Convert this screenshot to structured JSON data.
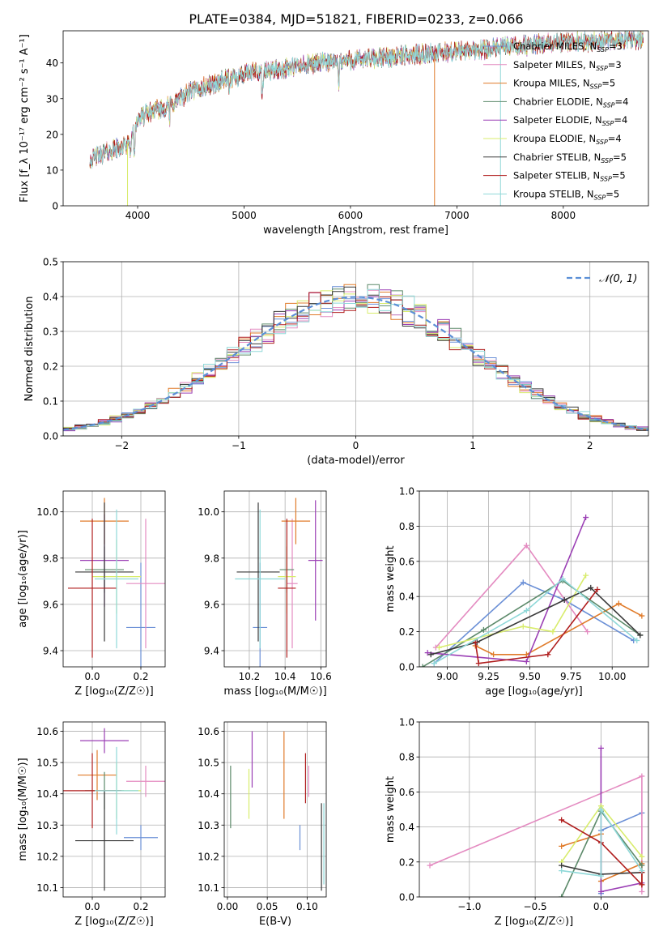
{
  "title": "PLATE=0384, MJD=51821, FIBERID=0233, z=0.066",
  "colors": [
    "#6a8fd6",
    "#e48bc1",
    "#e07b2a",
    "#5c8a6a",
    "#9b3fb5",
    "#d8ec6c",
    "#3a3a3a",
    "#b01e1e",
    "#8fd8d8"
  ],
  "chart_data": [
    {
      "id": "spectrum",
      "type": "line",
      "xlabel": "wavelength [Angstrom, rest frame]",
      "ylabel": "Flux [f_λ 10⁻¹⁷ erg cm⁻² s⁻¹ A⁻¹]",
      "xlim": [
        3300,
        8800
      ],
      "ylim": [
        0,
        49
      ],
      "xticks": [
        "4000",
        "5000",
        "6000",
        "7000",
        "8000"
      ],
      "yticks": [
        "0",
        "10",
        "20",
        "30",
        "40"
      ],
      "grid": false,
      "legend_position": "right",
      "continuum_x": [
        3550,
        3700,
        3900,
        4000,
        4100,
        4300,
        4500,
        4700,
        4900,
        5100,
        5300,
        5500,
        5700,
        5900,
        6100,
        6300,
        6500,
        6700,
        6900,
        7100,
        7300,
        7500,
        7700,
        7900,
        8100,
        8300,
        8500,
        8700
      ],
      "continuum_y": [
        13,
        15,
        17,
        24,
        26,
        28,
        32,
        34,
        36,
        37.5,
        38,
        39,
        40,
        40.5,
        41,
        41.5,
        42,
        42.5,
        43,
        43.5,
        44,
        44.5,
        45,
        45.5,
        46,
        46,
        46.5,
        46.5
      ],
      "series": [
        {
          "name": "Chabrier MILES, N_SSP=3"
        },
        {
          "name": "Salpeter MILES, N_SSP=3"
        },
        {
          "name": "Kroupa MILES, N_SSP=5"
        },
        {
          "name": "Chabrier ELODIE, N_SSP=4"
        },
        {
          "name": "Salpeter ELODIE, N_SSP=4"
        },
        {
          "name": "Kroupa ELODIE, N_SSP=4"
        },
        {
          "name": "Chabrier STELIB, N_SSP=5"
        },
        {
          "name": "Salpeter STELIB, N_SSP=5"
        },
        {
          "name": "Kroupa STELIB, N_SSP=5"
        }
      ],
      "legend_entries": [
        {
          "pre": "Chabrier MILES, N",
          "sub": "SSP",
          "post": "=3"
        },
        {
          "pre": "Salpeter MILES, N",
          "sub": "SSP",
          "post": "=3"
        },
        {
          "pre": "Kroupa MILES, N",
          "sub": "SSP",
          "post": "=5"
        },
        {
          "pre": "Chabrier ELODIE, N",
          "sub": "SSP",
          "post": "=4"
        },
        {
          "pre": "Salpeter ELODIE, N",
          "sub": "SSP",
          "post": "=4"
        },
        {
          "pre": "Kroupa ELODIE, N",
          "sub": "SSP",
          "post": "=4"
        },
        {
          "pre": "Chabrier STELIB, N",
          "sub": "SSP",
          "post": "=5"
        },
        {
          "pre": "Salpeter STELIB, N",
          "sub": "SSP",
          "post": "=5"
        },
        {
          "pre": "Kroupa STELIB, N",
          "sub": "SSP",
          "post": "=5"
        }
      ]
    },
    {
      "id": "residuals",
      "type": "histogram",
      "xlabel": "(data-model)/error",
      "ylabel": "Normed distribution",
      "xlim": [
        -2.5,
        2.5
      ],
      "ylim": [
        0,
        0.5
      ],
      "xticks": [
        "−2",
        "−1",
        "0",
        "1",
        "2"
      ],
      "yticks": [
        "0.0",
        "0.1",
        "0.2",
        "0.3",
        "0.4",
        "0.5"
      ],
      "grid": true,
      "bin_width": 0.1,
      "legend_label": "𝒩(0, 1)",
      "legend_position": "top-right",
      "reference_curve": "normal(0,1)"
    },
    {
      "id": "age_vs_Z",
      "type": "errorbar",
      "xlabel": "Z [log₁₀(Z/Z☉)]",
      "ylabel": "age  [log₁₀(age/yr)]",
      "xlim": [
        -0.12,
        0.3
      ],
      "ylim": [
        9.33,
        10.09
      ],
      "xticks": [
        "0.0",
        "0.2"
      ],
      "yticks": [
        "9.4",
        "9.6",
        "9.8",
        "10.0"
      ],
      "grid": true,
      "points": [
        {
          "x": 0.2,
          "xerr": 0.06,
          "y": 9.5,
          "yerr": 0.28
        },
        {
          "x": 0.22,
          "xerr": 0.08,
          "y": 9.69,
          "yerr": 0.28
        },
        {
          "x": 0.05,
          "xerr": 0.1,
          "y": 9.96,
          "yerr": 0.1
        },
        {
          "x": 0.05,
          "xerr": 0.08,
          "y": 9.75,
          "yerr": 0.1
        },
        {
          "x": 0.05,
          "xerr": 0.1,
          "y": 9.79,
          "yerr": 0.2
        },
        {
          "x": 0.1,
          "xerr": 0.1,
          "y": 9.72,
          "yerr": 0.16
        },
        {
          "x": 0.05,
          "xerr": 0.12,
          "y": 9.74,
          "yerr": 0.3
        },
        {
          "x": 0.0,
          "xerr": 0.1,
          "y": 9.67,
          "yerr": 0.3
        },
        {
          "x": 0.1,
          "xerr": 0.09,
          "y": 9.71,
          "yerr": 0.3
        }
      ]
    },
    {
      "id": "age_vs_mass",
      "type": "errorbar",
      "xlabel": "mass [log₁₀(M/M☉)]",
      "ylabel": "",
      "xlim": [
        10.06,
        10.63
      ],
      "ylim": [
        9.33,
        10.09
      ],
      "xticks": [
        "10.2",
        "10.4",
        "10.6"
      ],
      "yticks": [
        "9.4",
        "9.6",
        "9.8",
        "10.0"
      ],
      "grid": true,
      "points": [
        {
          "x": 10.26,
          "xerr": 0.04,
          "y": 9.5,
          "yerr": 0.28
        },
        {
          "x": 10.44,
          "xerr": 0.03,
          "y": 9.69,
          "yerr": 0.28
        },
        {
          "x": 10.46,
          "xerr": 0.08,
          "y": 9.96,
          "yerr": 0.1
        },
        {
          "x": 10.41,
          "xerr": 0.04,
          "y": 9.75,
          "yerr": 0.1
        },
        {
          "x": 10.57,
          "xerr": 0.04,
          "y": 9.79,
          "yerr": 0.26
        },
        {
          "x": 10.41,
          "xerr": 0.05,
          "y": 9.72,
          "yerr": 0.16
        },
        {
          "x": 10.25,
          "xerr": 0.12,
          "y": 9.74,
          "yerr": 0.3
        },
        {
          "x": 10.41,
          "xerr": 0.05,
          "y": 9.67,
          "yerr": 0.3
        },
        {
          "x": 10.26,
          "xerr": 0.14,
          "y": 9.71,
          "yerr": 0.3
        }
      ]
    },
    {
      "id": "weight_vs_age",
      "type": "line",
      "xlabel": "age  [log₁₀(age/yr)]",
      "ylabel": "mass weight",
      "xlim": [
        8.83,
        10.22
      ],
      "ylim": [
        0,
        1.0
      ],
      "xticks": [
        "9.00",
        "9.25",
        "9.50",
        "9.75",
        "10.00"
      ],
      "yticks": [
        "0.0",
        "0.2",
        "0.4",
        "0.6",
        "0.8",
        "1.0"
      ],
      "grid": true,
      "series": [
        {
          "x": [
            8.92,
            9.46,
            9.71,
            10.13
          ],
          "y": [
            0.02,
            0.48,
            0.38,
            0.15
          ]
        },
        {
          "x": [
            8.93,
            9.48,
            9.85
          ],
          "y": [
            0.11,
            0.69,
            0.2
          ]
        },
        {
          "x": [
            9.17,
            9.28,
            9.48,
            10.04,
            10.18
          ],
          "y": [
            0.12,
            0.07,
            0.07,
            0.36,
            0.29
          ]
        },
        {
          "x": [
            8.85,
            9.22,
            9.7,
            10.17
          ],
          "y": [
            0.0,
            0.21,
            0.49,
            0.18
          ]
        },
        {
          "x": [
            8.88,
            9.48,
            9.84
          ],
          "y": [
            0.08,
            0.03,
            0.85
          ]
        },
        {
          "x": [
            8.95,
            9.46,
            9.64,
            9.84
          ],
          "y": [
            0.11,
            0.23,
            0.2,
            0.52
          ]
        },
        {
          "x": [
            8.9,
            9.18,
            9.71,
            9.87,
            10.17
          ],
          "y": [
            0.07,
            0.14,
            0.38,
            0.45,
            0.18
          ]
        },
        {
          "x": [
            9.17,
            9.19,
            9.61,
            9.91
          ],
          "y": [
            0.14,
            0.02,
            0.07,
            0.44
          ]
        },
        {
          "x": [
            8.92,
            9.48,
            9.7,
            10.15
          ],
          "y": [
            0.02,
            0.32,
            0.5,
            0.15
          ]
        }
      ]
    },
    {
      "id": "mass_vs_Z",
      "type": "errorbar",
      "xlabel": "Z [log₁₀(Z/Z☉)]",
      "ylabel": "mass [log₁₀(M/M☉)]",
      "xlim": [
        -0.12,
        0.3
      ],
      "ylim": [
        10.07,
        10.63
      ],
      "xticks": [
        "0.0",
        "0.2"
      ],
      "yticks": [
        "10.1",
        "10.2",
        "10.3",
        "10.4",
        "10.5",
        "10.6"
      ],
      "grid": true,
      "points": [
        {
          "x": 0.2,
          "xerr": 0.07,
          "y": 10.26,
          "yerr": 0.04
        },
        {
          "x": 0.22,
          "xerr": 0.08,
          "y": 10.44,
          "yerr": 0.05
        },
        {
          "x": 0.02,
          "xerr": 0.08,
          "y": 10.46,
          "yerr": 0.08
        },
        {
          "x": 0.05,
          "xerr": 0.08,
          "y": 10.41,
          "yerr": 0.06
        },
        {
          "x": 0.05,
          "xerr": 0.1,
          "y": 10.57,
          "yerr": 0.04
        },
        {
          "x": 0.1,
          "xerr": 0.1,
          "y": 10.41,
          "yerr": 0.09
        },
        {
          "x": 0.05,
          "xerr": 0.12,
          "y": 10.25,
          "yerr": 0.16
        },
        {
          "x": 0.0,
          "xerr": 0.12,
          "y": 10.41,
          "yerr": 0.12
        },
        {
          "x": 0.1,
          "xerr": 0.09,
          "y": 10.41,
          "yerr": 0.14
        }
      ]
    },
    {
      "id": "mass_vs_EBV",
      "type": "errorbar",
      "xlabel": "E(B-V)",
      "ylabel": "",
      "xlim": [
        -0.004,
        0.124
      ],
      "ylim": [
        10.07,
        10.63
      ],
      "xticks": [
        "0.00",
        "0.05",
        "0.10"
      ],
      "yticks": [
        "10.1",
        "10.2",
        "10.3",
        "10.4",
        "10.5",
        "10.6"
      ],
      "grid": true,
      "points": [
        {
          "x": 0.091,
          "xerr": 0,
          "y": 10.26,
          "yerr": 0.04
        },
        {
          "x": 0.102,
          "xerr": 0,
          "y": 10.44,
          "yerr": 0.05
        },
        {
          "x": 0.071,
          "xerr": 0,
          "y": 10.46,
          "yerr": 0.14
        },
        {
          "x": 0.004,
          "xerr": 0,
          "y": 10.39,
          "yerr": 0.1
        },
        {
          "x": 0.031,
          "xerr": 0,
          "y": 10.51,
          "yerr": 0.09
        },
        {
          "x": 0.027,
          "xerr": 0,
          "y": 10.4,
          "yerr": 0.08
        },
        {
          "x": 0.118,
          "xerr": 0,
          "y": 10.23,
          "yerr": 0.14
        },
        {
          "x": 0.098,
          "xerr": 0,
          "y": 10.45,
          "yerr": 0.08
        },
        {
          "x": 0.121,
          "xerr": 0,
          "y": 10.24,
          "yerr": 0.13
        }
      ]
    },
    {
      "id": "weight_vs_Z",
      "type": "line",
      "xlabel": "Z [log₁₀(Z/Z☉)]",
      "ylabel": "mass weight",
      "xlim": [
        -1.38,
        0.36
      ],
      "ylim": [
        0,
        1.0
      ],
      "xticks": [
        "−1.0",
        "−0.5",
        "0.0"
      ],
      "yticks": [
        "0.0",
        "0.2",
        "0.4",
        "0.6",
        "0.8",
        "1.0"
      ],
      "grid": true,
      "series": [
        {
          "x": [
            0.0,
            0.0,
            0.31
          ],
          "y": [
            0.02,
            0.38,
            0.48
          ]
        },
        {
          "x": [
            -1.3,
            0.31,
            0.31
          ],
          "y": [
            0.18,
            0.69,
            0.03
          ]
        },
        {
          "x": [
            -0.3,
            0.0,
            0.0,
            0.31,
            0.31
          ],
          "y": [
            0.29,
            0.36,
            0.09,
            0.19,
            0.07
          ]
        },
        {
          "x": [
            -0.3,
            0.0,
            0.31
          ],
          "y": [
            0.0,
            0.49,
            0.18
          ]
        },
        {
          "x": [
            0.0,
            0.0,
            0.31
          ],
          "y": [
            0.85,
            0.03,
            0.08
          ]
        },
        {
          "x": [
            -0.3,
            0.0,
            0.31
          ],
          "y": [
            0.2,
            0.52,
            0.23
          ]
        },
        {
          "x": [
            -0.3,
            0.0,
            0.31
          ],
          "y": [
            0.18,
            0.13,
            0.14
          ]
        },
        {
          "x": [
            -0.3,
            0.0,
            0.31,
            0.31
          ],
          "y": [
            0.44,
            0.31,
            0.07,
            0.14
          ]
        },
        {
          "x": [
            -0.3,
            0.0,
            0.0,
            0.31
          ],
          "y": [
            0.15,
            0.12,
            0.5,
            0.15
          ]
        }
      ]
    }
  ]
}
